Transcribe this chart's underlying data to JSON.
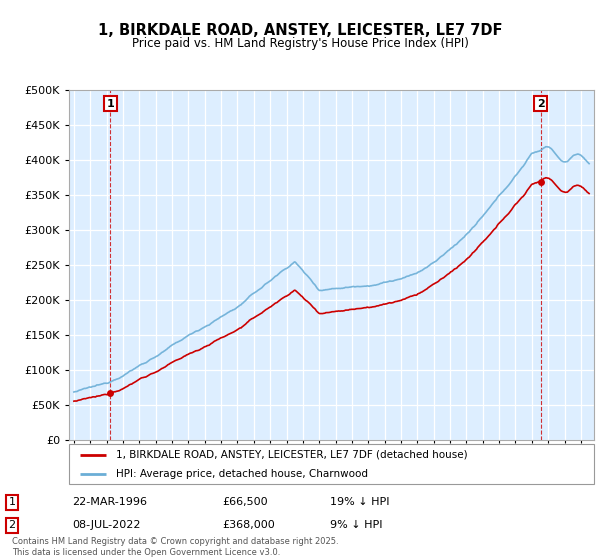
{
  "title": "1, BIRKDALE ROAD, ANSTEY, LEICESTER, LE7 7DF",
  "subtitle": "Price paid vs. HM Land Registry's House Price Index (HPI)",
  "legend_line1": "1, BIRKDALE ROAD, ANSTEY, LEICESTER, LE7 7DF (detached house)",
  "legend_line2": "HPI: Average price, detached house, Charnwood",
  "transaction1_label": "1",
  "transaction1_date": "22-MAR-1996",
  "transaction1_price": "£66,500",
  "transaction1_hpi": "19% ↓ HPI",
  "transaction2_label": "2",
  "transaction2_date": "08-JUL-2022",
  "transaction2_price": "£368,000",
  "transaction2_hpi": "9% ↓ HPI",
  "footer": "Contains HM Land Registry data © Crown copyright and database right 2025.\nThis data is licensed under the Open Government Licence v3.0.",
  "hpi_color": "#6baed6",
  "price_color": "#cc0000",
  "marker_box_color": "#cc0000",
  "bg_color": "#ddeeff",
  "ylim": [
    0,
    500000
  ],
  "ylabel_ticks": [
    0,
    50000,
    100000,
    150000,
    200000,
    250000,
    300000,
    350000,
    400000,
    450000,
    500000
  ],
  "t1_year": 1996.22,
  "t2_year": 2022.55,
  "p1": 66500,
  "p2": 368000
}
